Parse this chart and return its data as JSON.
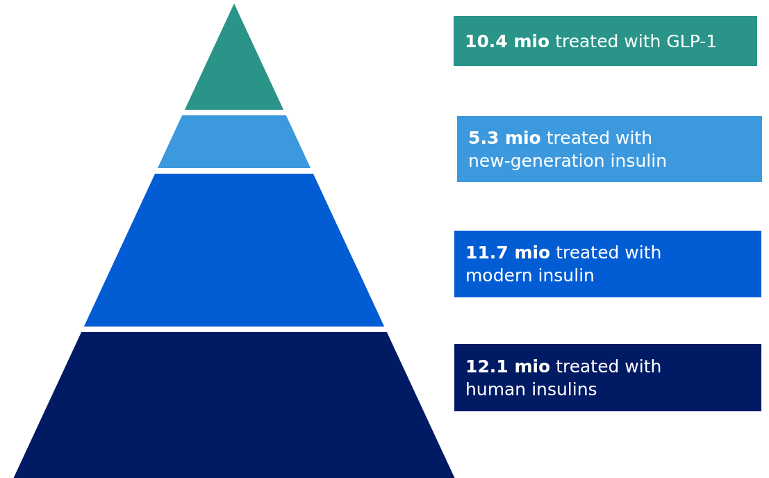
{
  "chart_data": {
    "type": "other",
    "categories": [
      "treated with GLP-1",
      "treated with\nnew-generation insulin",
      "treated with\nmodern insulin",
      "treated with\nhuman insulins"
    ],
    "values": [
      10.4,
      5.3,
      11.7,
      12.1
    ],
    "value_labels": [
      "10.4 mio",
      "5.3 mio",
      "11.7 mio",
      "12.1 mio"
    ],
    "colors": [
      "#2a9488",
      "#3d99de",
      "#025cd4",
      "#001a63"
    ]
  }
}
